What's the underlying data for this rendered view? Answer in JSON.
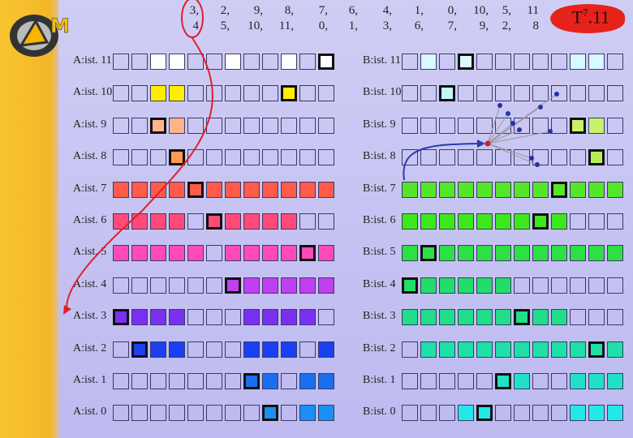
{
  "title": {
    "base": "T",
    "sup": "7",
    "suffix": ".11"
  },
  "header_pairs": [
    {
      "top": "3,",
      "bottom": "4"
    },
    {
      "top": "2,",
      "bottom": "5,"
    },
    {
      "top": "9,",
      "bottom": "10,"
    },
    {
      "top": "8,",
      "bottom": "11,"
    },
    {
      "top": "7,",
      "bottom": "0,"
    },
    {
      "top": "6,",
      "bottom": "1,"
    },
    {
      "top": "4,",
      "bottom": "3,"
    },
    {
      "top": "1,",
      "bottom": "6,"
    },
    {
      "top": "0,",
      "bottom": "7,"
    },
    {
      "top": "10,",
      "bottom": "9,"
    },
    {
      "top": "5,",
      "bottom": "2,"
    },
    {
      "top": "11",
      "bottom": "8"
    }
  ],
  "a_rows": [
    {
      "label": "A:ist. 11",
      "color": "#ffffff",
      "filled": [
        2,
        3,
        6,
        9
      ],
      "highlight": 11
    },
    {
      "label": "A:ist. 10",
      "color": "#ffee00",
      "filled": [
        2,
        3,
        9
      ],
      "highlight": 9
    },
    {
      "label": "A:ist. 9",
      "color": "#ffb48a",
      "filled": [
        2,
        3
      ],
      "highlight": 2
    },
    {
      "label": "A:ist. 8",
      "color": "#ff9a55",
      "filled": [
        3
      ],
      "highlight": 3
    },
    {
      "label": "A:ist. 7",
      "color": "#ff5a4a",
      "filled": [
        0,
        1,
        2,
        3,
        4,
        5,
        6,
        7,
        8,
        9,
        10,
        11
      ],
      "highlight": 4
    },
    {
      "label": "A:ist. 6",
      "color": "#ff4a7a",
      "filled": [
        0,
        1,
        2,
        3,
        5,
        6,
        7,
        8,
        9
      ],
      "highlight": 5
    },
    {
      "label": "A:ist. 5",
      "color": "#ff4ab8",
      "filled": [
        0,
        1,
        2,
        3,
        4,
        6,
        7,
        8,
        9,
        10,
        11
      ],
      "highlight": 10
    },
    {
      "label": "A:ist. 4",
      "color": "#c040ef",
      "filled": [
        6,
        7,
        8,
        9,
        10,
        11
      ],
      "highlight": 6
    },
    {
      "label": "A:ist. 3",
      "color": "#7a30f0",
      "filled": [
        0,
        1,
        2,
        3,
        7,
        8,
        9,
        10
      ],
      "highlight": 0
    },
    {
      "label": "A:ist. 2",
      "color": "#1a40f0",
      "filled": [
        1,
        2,
        3,
        7,
        8,
        9,
        11
      ],
      "highlight": 1
    },
    {
      "label": "A:ist. 1",
      "color": "#1a6ef0",
      "filled": [
        7,
        8,
        10,
        11
      ],
      "highlight": 7
    },
    {
      "label": "A:ist. 0",
      "color": "#1a90f4",
      "filled": [
        8,
        10,
        11
      ],
      "highlight": 8
    }
  ],
  "b_rows": [
    {
      "label": "B:ist. 11",
      "color": "#d9f8ff",
      "filled": [
        1,
        3,
        9,
        10
      ],
      "highlight": 3
    },
    {
      "label": "B:ist. 10",
      "color": "#c7f6f7",
      "filled": [
        2
      ],
      "highlight": 2
    },
    {
      "label": "B:ist. 9",
      "color": "#c6f26a",
      "filled": [
        9,
        10
      ],
      "highlight": 9
    },
    {
      "label": "B:ist. 8",
      "color": "#b8ee55",
      "filled": [
        10
      ],
      "highlight": 10
    },
    {
      "label": "B:ist. 7",
      "color": "#55e62a",
      "filled": [
        0,
        1,
        2,
        3,
        4,
        5,
        6,
        7,
        8,
        9,
        10,
        11
      ],
      "highlight": 8
    },
    {
      "label": "B:ist. 6",
      "color": "#3ee61e",
      "filled": [
        0,
        1,
        2,
        3,
        4,
        5,
        6,
        7,
        8
      ],
      "highlight": 7
    },
    {
      "label": "B:ist. 5",
      "color": "#2ee045",
      "filled": [
        0,
        1,
        2,
        3,
        4,
        5,
        6,
        7,
        8,
        9,
        10,
        11
      ],
      "highlight": 1
    },
    {
      "label": "B:ist. 4",
      "color": "#22dd6a",
      "filled": [
        0,
        1,
        2,
        3,
        4,
        5
      ],
      "highlight": 0
    },
    {
      "label": "B:ist. 3",
      "color": "#22dd8a",
      "filled": [
        0,
        1,
        2,
        3,
        4,
        5,
        6,
        7,
        8
      ],
      "highlight": 6
    },
    {
      "label": "B:ist. 2",
      "color": "#1ee0a8",
      "filled": [
        1,
        2,
        3,
        4,
        5,
        6,
        7,
        8,
        9,
        10,
        11
      ],
      "highlight": 10
    },
    {
      "label": "B:ist. 1",
      "color": "#22e0c8",
      "filled": [
        6,
        9,
        10,
        11
      ],
      "highlight": 5
    },
    {
      "label": "B:ist. 0",
      "color": "#22e8ea",
      "filled": [
        3,
        9,
        10,
        11
      ],
      "highlight": 4
    }
  ],
  "colors": {
    "grid_border": "#3a3a6a",
    "annotation_red": "#e0202a",
    "network_blue": "#2233aa"
  }
}
